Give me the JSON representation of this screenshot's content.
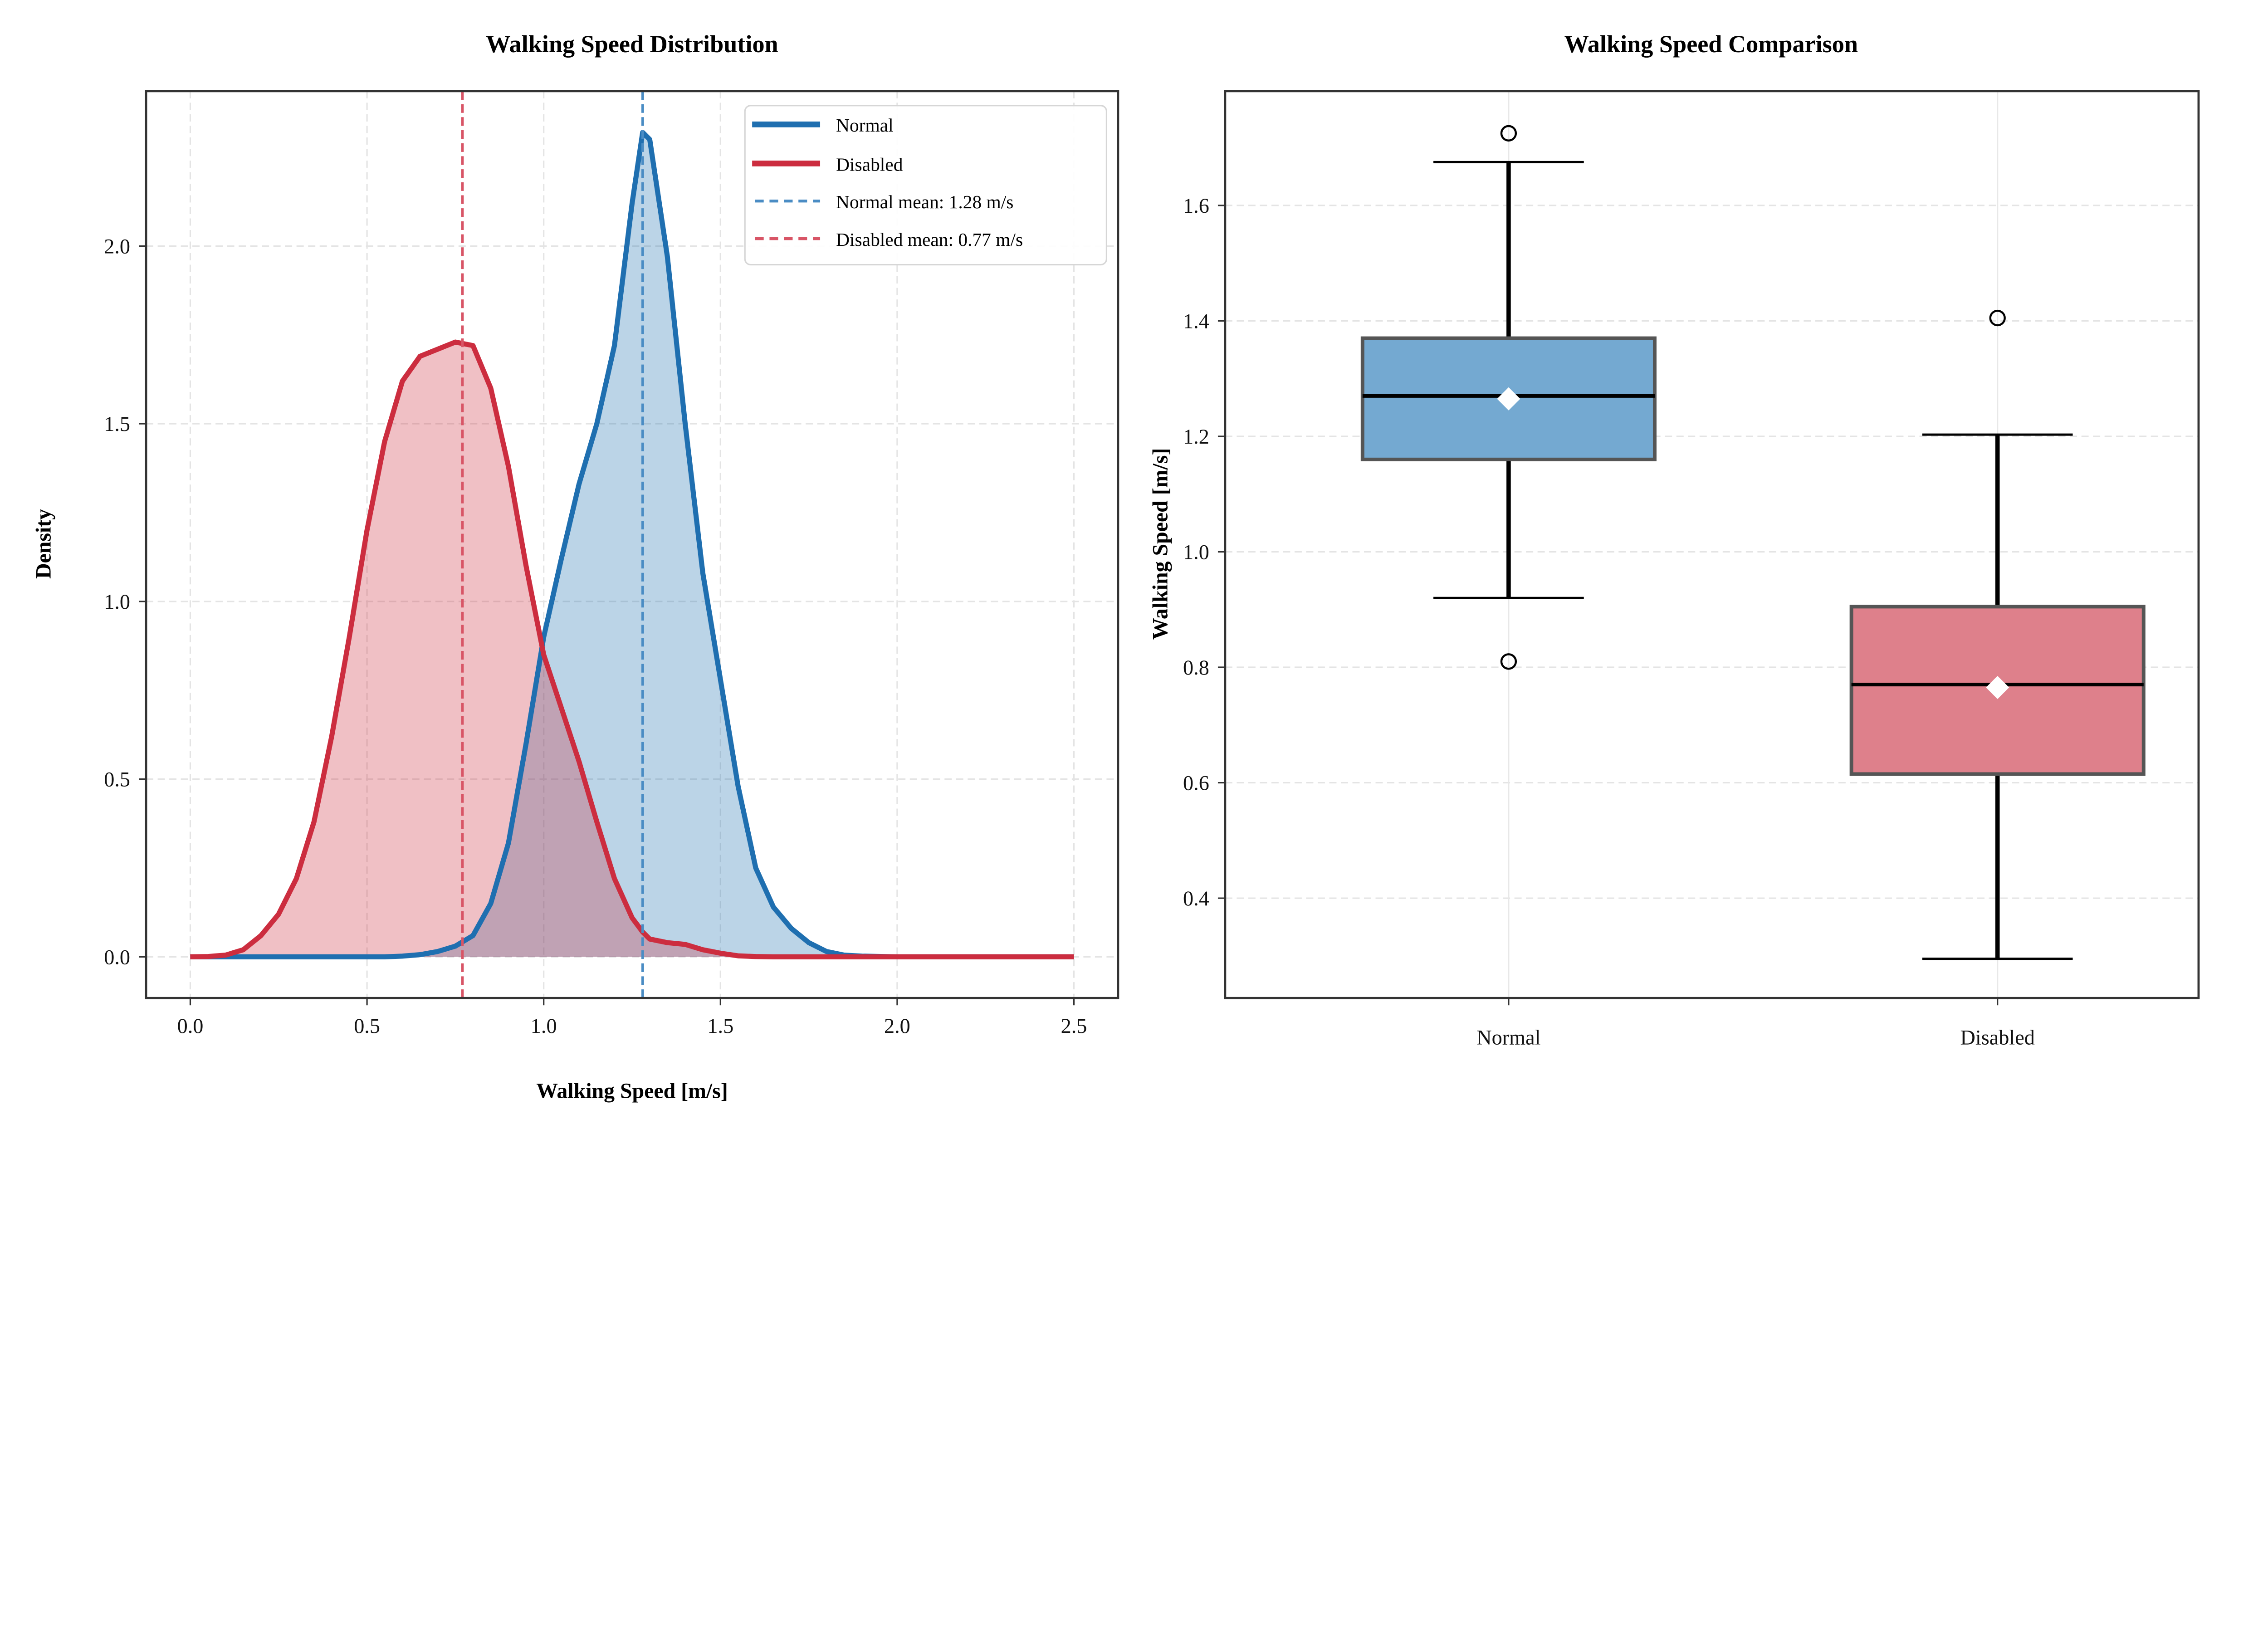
{
  "chart_data": [
    {
      "type": "area",
      "title": "Walking Speed Distribution",
      "xlabel": "Walking Speed [m/s]",
      "ylabel": "Density",
      "xlim": [
        -0.125,
        2.625
      ],
      "ylim": [
        -0.116,
        2.436
      ],
      "xticks": [
        "0.0",
        "0.5",
        "1.0",
        "1.5",
        "2.0",
        "2.5"
      ],
      "yticks": [
        "0.0",
        "0.5",
        "1.0",
        "1.5",
        "2.0"
      ],
      "grid": true,
      "legend_position": "top-right",
      "x": [
        0,
        0.05,
        0.1,
        0.15,
        0.2,
        0.25,
        0.3,
        0.35,
        0.4,
        0.45,
        0.5,
        0.55,
        0.6,
        0.65,
        0.7,
        0.75,
        0.8,
        0.85,
        0.9,
        0.95,
        1.0,
        1.05,
        1.1,
        1.15,
        1.2,
        1.25,
        1.28,
        1.3,
        1.35,
        1.4,
        1.45,
        1.5,
        1.55,
        1.6,
        1.65,
        1.7,
        1.75,
        1.8,
        1.85,
        1.9,
        2.0,
        2.5
      ],
      "series": [
        {
          "name": "Normal",
          "color": "#1f6fb0",
          "values": [
            0,
            0,
            0,
            0,
            0,
            0,
            0,
            0,
            0,
            0,
            0,
            0,
            0.002,
            0.006,
            0.015,
            0.03,
            0.06,
            0.15,
            0.32,
            0.6,
            0.9,
            1.12,
            1.33,
            1.5,
            1.72,
            2.12,
            2.32,
            2.3,
            1.97,
            1.5,
            1.08,
            0.78,
            0.48,
            0.25,
            0.14,
            0.08,
            0.04,
            0.015,
            0.005,
            0.002,
            0,
            0
          ]
        },
        {
          "name": "Disabled",
          "color": "#cc2d3f",
          "values": [
            0,
            0.001,
            0.005,
            0.02,
            0.06,
            0.12,
            0.22,
            0.38,
            0.62,
            0.9,
            1.2,
            1.45,
            1.62,
            1.69,
            1.71,
            1.73,
            1.72,
            1.6,
            1.38,
            1.1,
            0.85,
            0.7,
            0.55,
            0.38,
            0.22,
            0.11,
            0.07,
            0.05,
            0.04,
            0.035,
            0.02,
            0.01,
            0.003,
            0.001,
            0,
            0,
            0,
            0,
            0,
            0,
            0,
            0
          ]
        }
      ],
      "mean_lines": [
        {
          "label": "Normal mean: 1.28 m/s",
          "x": 1.28,
          "color": "#4a8cc4"
        },
        {
          "label": "Disabled mean: 0.77 m/s",
          "x": 0.77,
          "color": "#d85566"
        }
      ]
    },
    {
      "type": "box",
      "title": "Walking Speed Comparison",
      "ylabel": "Walking Speed [m/s]",
      "ylim": [
        0.227,
        1.798
      ],
      "yticks": [
        "0.4",
        "0.6",
        "0.8",
        "1.0",
        "1.2",
        "1.4",
        "1.6"
      ],
      "grid": true,
      "categories": [
        "Normal",
        "Disabled"
      ],
      "boxes": [
        {
          "name": "Normal",
          "color": "#74a9d1",
          "q1": 1.16,
          "median": 1.27,
          "q3": 1.37,
          "mean": 1.265,
          "whisker_low": 0.92,
          "whisker_high": 1.675,
          "outliers": [
            1.725,
            0.81
          ]
        },
        {
          "name": "Disabled",
          "color": "#de808b",
          "q1": 0.615,
          "median": 0.77,
          "q3": 0.905,
          "mean": 0.765,
          "whisker_low": 0.295,
          "whisker_high": 1.203,
          "outliers": [
            1.405
          ]
        }
      ]
    }
  ]
}
